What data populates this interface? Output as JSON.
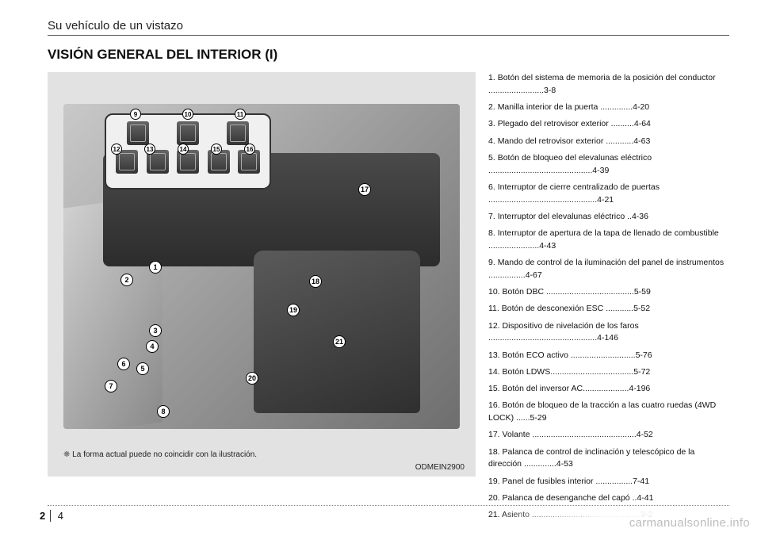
{
  "header": {
    "running_title": "Su vehículo de un vistazo"
  },
  "section": {
    "title": "VISIÓN GENERAL DEL INTERIOR (I)"
  },
  "figure": {
    "caption_prefix": "❈",
    "caption": "La forma actual puede no coincidir con la ilustración.",
    "ref_code": "ODMEIN2900",
    "inset_callouts_row1": [
      "9",
      "10",
      "11"
    ],
    "inset_callouts_row2": [
      "12",
      "13",
      "14",
      "15",
      "16"
    ],
    "main_callouts": {
      "c1": "1",
      "c2": "2",
      "c3": "3",
      "c4": "4",
      "c5": "5",
      "c6": "6",
      "c7": "7",
      "c8": "8",
      "c17": "17",
      "c18": "18",
      "c19": "19",
      "c20": "20",
      "c21": "21"
    }
  },
  "list": [
    {
      "n": "1.",
      "t": "Botón del sistema de memoria de la posición del conductor ........................",
      "p": "3-8"
    },
    {
      "n": "2.",
      "t": "Manilla interior de la puerta ..............",
      "p": "4-20"
    },
    {
      "n": "3.",
      "t": "Plegado del retrovisor exterior ..........",
      "p": "4-64"
    },
    {
      "n": "4.",
      "t": "Mando del retrovisor exterior ............",
      "p": "4-63"
    },
    {
      "n": "5.",
      "t": "Botón de bloqueo del elevalunas eléctrico .............................................",
      "p": "4-39"
    },
    {
      "n": "6.",
      "t": "Interruptor de cierre centralizado de puertas ...............................................",
      "p": "4-21"
    },
    {
      "n": "7.",
      "t": "Interruptor del elevalunas eléctrico ..",
      "p": "4-36"
    },
    {
      "n": "8.",
      "t": "Interruptor de apertura de la tapa de llenado de combustible ......................",
      "p": "4-43"
    },
    {
      "n": "9.",
      "t": "Mando de control de la iluminación del panel de instrumentos ................",
      "p": "4-67"
    },
    {
      "n": "10.",
      "t": "Botón DBC ......................................",
      "p": "5-59"
    },
    {
      "n": "11.",
      "t": "Botón de desconexión ESC ............",
      "p": "5-52"
    },
    {
      "n": "12.",
      "t": "Dispositivo de nivelación de los faros ...............................................",
      "p": "4-146"
    },
    {
      "n": "13.",
      "t": "Botón ECO activo ............................",
      "p": "5-76"
    },
    {
      "n": "14.",
      "t": "Botón LDWS....................................",
      "p": "5-72"
    },
    {
      "n": "15.",
      "t": "Botón del inversor AC....................",
      "p": "4-196"
    },
    {
      "n": "16.",
      "t": "Botón de bloqueo de la tracción a las cuatro ruedas (4WD LOCK) ......",
      "p": "5-29"
    },
    {
      "n": "17.",
      "t": "Volante .............................................",
      "p": "4-52"
    },
    {
      "n": "18.",
      "t": "Palanca de control de inclinación y telescópico de la dirección ..............",
      "p": "4-53"
    },
    {
      "n": "19.",
      "t": "Panel de fusibles interior ................",
      "p": "7-41"
    },
    {
      "n": "20.",
      "t": "Palanca de desenganche del capó ..",
      "p": "4-41"
    },
    {
      "n": "21.",
      "t": "Asiento ...............................................",
      "p": "3-2"
    }
  ],
  "footer": {
    "section_no": "2",
    "page_no": "4"
  },
  "watermark": "carmanualsonline.info",
  "colors": {
    "page_bg": "#ffffff",
    "figure_bg": "#e2e2e2",
    "text": "#111111",
    "rule": "#555555"
  }
}
